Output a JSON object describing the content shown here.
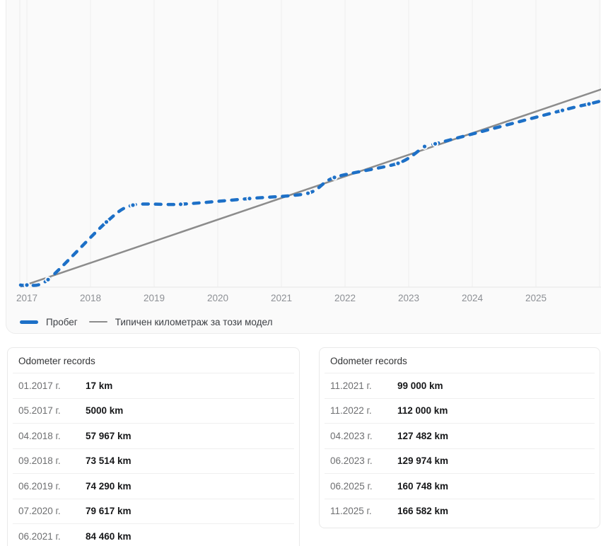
{
  "chart": {
    "x_ticks": [
      "2017",
      "2018",
      "2019",
      "2020",
      "2021",
      "2022",
      "2023",
      "2024",
      "2025"
    ],
    "legend": [
      {
        "label": "Пробег",
        "color": "#1d70c7",
        "swatch": "thick-line"
      },
      {
        "label": "Типичен километраж за този модел",
        "color": "#8c8c8c",
        "swatch": "thin-line"
      }
    ]
  },
  "chart_data": {
    "type": "line",
    "title": "",
    "xlabel": "",
    "ylabel": "",
    "x_unit": "year",
    "xlim": [
      2016.89,
      2026.05
    ],
    "ylim_km": [
      0,
      262000
    ],
    "grid": "vertical-yearly",
    "grid_years": [
      2017,
      2018,
      2019,
      2020,
      2021,
      2022,
      2023,
      2024,
      2025,
      2026
    ],
    "legend_position": "bottom-left",
    "series": [
      {
        "name": "Пробег",
        "color": "#1d70c7",
        "line_style": "dashed",
        "markers": true,
        "points": [
          {
            "date": "01.2017",
            "year": 2017.0,
            "km": 17
          },
          {
            "date": "05.2017",
            "year": 2017.333,
            "km": 5000
          },
          {
            "date": "04.2018",
            "year": 2018.25,
            "km": 57967
          },
          {
            "date": "09.2018",
            "year": 2018.667,
            "km": 73514
          },
          {
            "date": "06.2019",
            "year": 2019.417,
            "km": 74290
          },
          {
            "date": "07.2020",
            "year": 2020.5,
            "km": 79617
          },
          {
            "date": "06.2021",
            "year": 2021.417,
            "km": 84460
          },
          {
            "date": "11.2021",
            "year": 2021.833,
            "km": 99000
          },
          {
            "date": "11.2022",
            "year": 2022.833,
            "km": 112000
          },
          {
            "date": "04.2023",
            "year": 2023.25,
            "km": 127482
          },
          {
            "date": "06.2023",
            "year": 2023.417,
            "km": 129974
          },
          {
            "date": "06.2025",
            "year": 2025.417,
            "km": 160748
          },
          {
            "date": "11.2025",
            "year": 2025.833,
            "km": 166582
          }
        ],
        "edge_extension": {
          "start": {
            "year": 2016.9,
            "km": 17
          },
          "end": {
            "year": 2026.05,
            "km": 169800
          }
        }
      },
      {
        "name": "Типичен километраж за този модел",
        "color": "#8c8c8c",
        "line_style": "solid",
        "markers": false,
        "points": [
          {
            "year": 2016.9,
            "km": -1500
          },
          {
            "year": 2026.05,
            "km": 180500
          }
        ]
      }
    ]
  },
  "tables": {
    "left": {
      "title": "Odometer records",
      "rows": [
        {
          "date": "01.2017 г.",
          "value": "17 km"
        },
        {
          "date": "05.2017 г.",
          "value": "5000 km"
        },
        {
          "date": "04.2018 г.",
          "value": "57 967 km"
        },
        {
          "date": "09.2018 г.",
          "value": "73 514 km"
        },
        {
          "date": "06.2019 г.",
          "value": "74 290 km"
        },
        {
          "date": "07.2020 г.",
          "value": "79 617 km"
        },
        {
          "date": "06.2021 г.",
          "value": "84 460 km"
        }
      ]
    },
    "right": {
      "title": "Odometer records",
      "rows": [
        {
          "date": "11.2021 г.",
          "value": "99 000 km"
        },
        {
          "date": "11.2022 г.",
          "value": "112 000 km"
        },
        {
          "date": "04.2023 г.",
          "value": "127 482 km"
        },
        {
          "date": "06.2023 г.",
          "value": "129 974 km"
        },
        {
          "date": "06.2025 г.",
          "value": "160 748 km"
        },
        {
          "date": "11.2025 г.",
          "value": "166 582 km"
        }
      ]
    }
  }
}
